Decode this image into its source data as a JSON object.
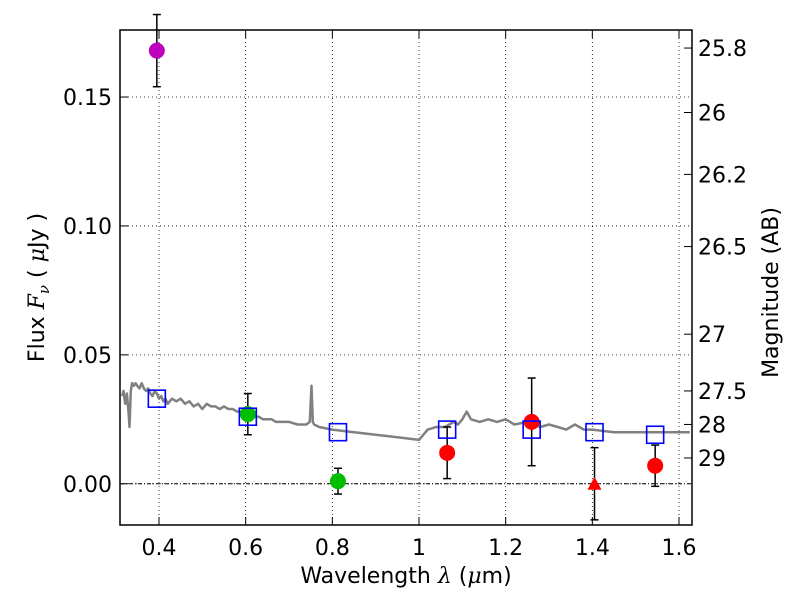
{
  "chart_data": {
    "type": "scatter",
    "xlabel_prefix": "Wavelength",
    "xlabel_symbol": "λ",
    "xlabel_unit_open": " (",
    "xlabel_unit_mu": "μ",
    "xlabel_unit_rest": "m)",
    "ylabel_prefix": "Flux",
    "ylabel_symbol": "F",
    "ylabel_sub": "ν",
    "ylabel_unit_open": "(",
    "ylabel_unit_mu": "μ",
    "ylabel_unit_rest": "Jy )",
    "y2label": "Magnitude (AB)",
    "xlim": [
      0.31,
      1.63
    ],
    "ylim": [
      -0.016,
      0.176
    ],
    "xticks": [
      0.4,
      0.6,
      0.8,
      1.0,
      1.2,
      1.4,
      1.6
    ],
    "xtick_labels": [
      "0.4",
      "0.6",
      "0.8",
      "1",
      "1.2",
      "1.4",
      "1.6"
    ],
    "yticks": [
      0.0,
      0.05,
      0.1,
      0.15
    ],
    "ytick_labels": [
      "0.00",
      "0.05",
      "0.10",
      "0.15"
    ],
    "y2ticks": [
      {
        "flux": 0.169,
        "label": "25.8"
      },
      {
        "flux": 0.144,
        "label": "26"
      },
      {
        "flux": 0.12,
        "label": "26.2"
      },
      {
        "flux": 0.092,
        "label": "26.5"
      },
      {
        "flux": 0.058,
        "label": "27"
      },
      {
        "flux": 0.036,
        "label": "27.5"
      },
      {
        "flux": 0.023,
        "label": "28"
      },
      {
        "flux": 0.01,
        "label": "29"
      }
    ],
    "grid": true,
    "colors": {
      "spectrum": "#808080",
      "model": "#0000ff",
      "magenta": "#bf00bf",
      "green": "#00bf00",
      "red": "#ff0000",
      "errorbar": "#000000"
    },
    "spectrum": {
      "x": [
        0.315,
        0.318,
        0.322,
        0.326,
        0.33,
        0.332,
        0.335,
        0.338,
        0.342,
        0.346,
        0.35,
        0.355,
        0.36,
        0.365,
        0.37,
        0.375,
        0.38,
        0.385,
        0.39,
        0.395,
        0.4,
        0.405,
        0.41,
        0.415,
        0.42,
        0.43,
        0.44,
        0.45,
        0.46,
        0.47,
        0.48,
        0.49,
        0.5,
        0.51,
        0.52,
        0.53,
        0.54,
        0.55,
        0.56,
        0.57,
        0.58,
        0.59,
        0.6,
        0.61,
        0.62,
        0.63,
        0.64,
        0.65,
        0.66,
        0.67,
        0.68,
        0.7,
        0.72,
        0.74,
        0.748,
        0.752,
        0.755,
        0.758,
        0.77,
        0.8,
        0.85,
        0.9,
        0.95,
        1.0,
        1.02,
        1.04,
        1.06,
        1.08,
        1.09,
        1.1,
        1.11,
        1.12,
        1.14,
        1.16,
        1.18,
        1.2,
        1.22,
        1.25,
        1.28,
        1.3,
        1.32,
        1.34,
        1.36,
        1.38,
        1.4,
        1.45,
        1.5,
        1.55,
        1.6,
        1.625
      ],
      "y": [
        0.034,
        0.036,
        0.031,
        0.035,
        0.027,
        0.022,
        0.036,
        0.039,
        0.038,
        0.039,
        0.038,
        0.037,
        0.039,
        0.037,
        0.036,
        0.037,
        0.035,
        0.034,
        0.036,
        0.035,
        0.033,
        0.034,
        0.032,
        0.033,
        0.031,
        0.033,
        0.032,
        0.033,
        0.031,
        0.032,
        0.03,
        0.031,
        0.029,
        0.031,
        0.03,
        0.03,
        0.029,
        0.03,
        0.029,
        0.029,
        0.028,
        0.028,
        0.027,
        0.027,
        0.026,
        0.026,
        0.025,
        0.025,
        0.025,
        0.024,
        0.024,
        0.024,
        0.023,
        0.023,
        0.024,
        0.038,
        0.024,
        0.023,
        0.022,
        0.021,
        0.02,
        0.019,
        0.018,
        0.017,
        0.021,
        0.022,
        0.022,
        0.024,
        0.023,
        0.025,
        0.028,
        0.025,
        0.024,
        0.025,
        0.024,
        0.025,
        0.023,
        0.024,
        0.022,
        0.023,
        0.022,
        0.021,
        0.023,
        0.021,
        0.021,
        0.02,
        0.02,
        0.02,
        0.02,
        0.02
      ]
    },
    "model_points": [
      {
        "x": 0.395,
        "y": 0.033
      },
      {
        "x": 0.605,
        "y": 0.026
      },
      {
        "x": 0.813,
        "y": 0.02
      },
      {
        "x": 1.065,
        "y": 0.021
      },
      {
        "x": 1.26,
        "y": 0.021
      },
      {
        "x": 1.405,
        "y": 0.02
      },
      {
        "x": 1.545,
        "y": 0.019
      }
    ],
    "observed_points": [
      {
        "x": 0.395,
        "y": 0.168,
        "err": 0.014,
        "color": "magenta",
        "marker": "circle"
      },
      {
        "x": 0.605,
        "y": 0.027,
        "err": 0.008,
        "color": "green",
        "marker": "circle"
      },
      {
        "x": 0.813,
        "y": 0.001,
        "err": 0.005,
        "color": "green",
        "marker": "circle"
      },
      {
        "x": 1.065,
        "y": 0.012,
        "err": 0.01,
        "color": "red",
        "marker": "circle"
      },
      {
        "x": 1.26,
        "y": 0.024,
        "err": 0.017,
        "color": "red",
        "marker": "circle"
      },
      {
        "x": 1.405,
        "y": 0.0,
        "err": 0.014,
        "color": "red",
        "marker": "triangle"
      },
      {
        "x": 1.545,
        "y": 0.007,
        "err": 0.008,
        "color": "red",
        "marker": "circle"
      }
    ]
  }
}
